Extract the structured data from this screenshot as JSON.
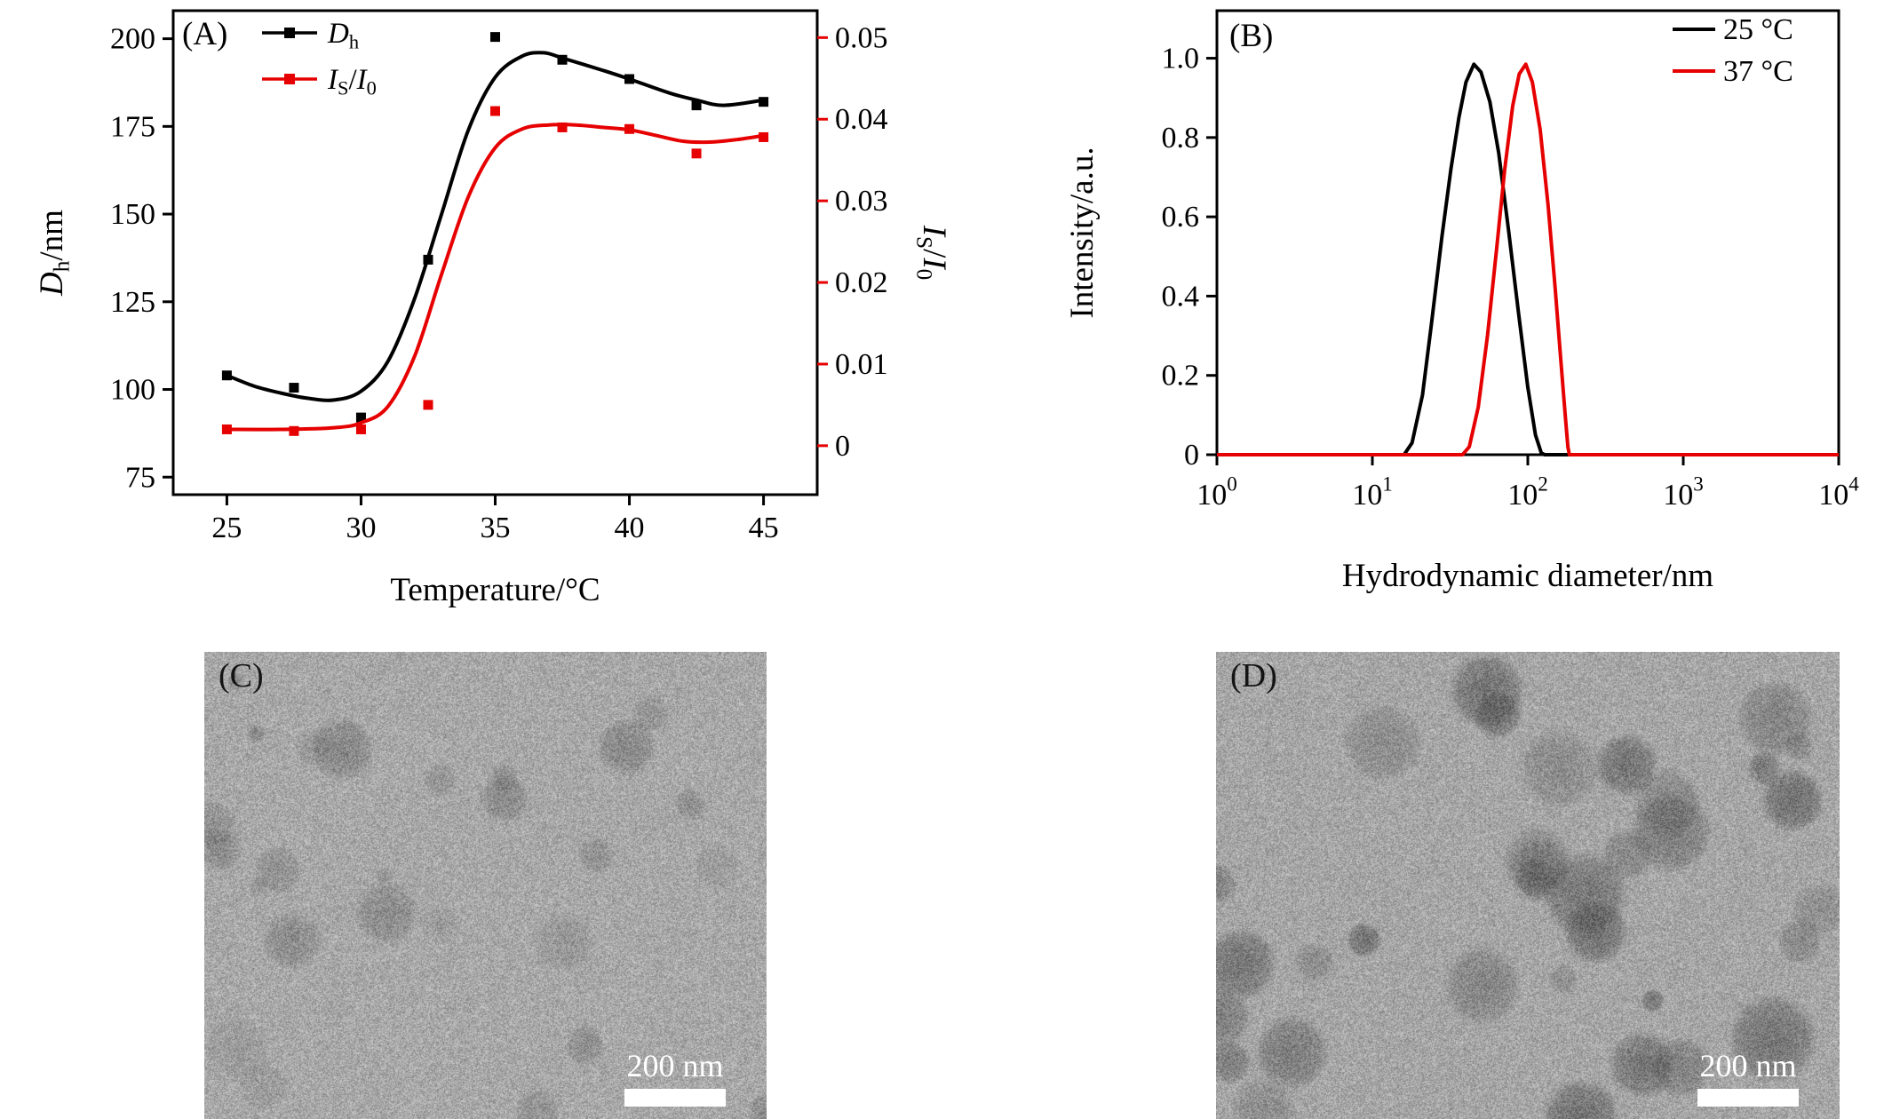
{
  "colors": {
    "black": "#000000",
    "red": "#e60000",
    "background": "#ffffff",
    "scalebar": "#ffffff"
  },
  "panels": {
    "C": {
      "label": "(C)",
      "scalebar": "200 nm",
      "tem": {
        "seed": 7,
        "base": "#b9b9b9",
        "blobs": 26,
        "rmin": 10,
        "rmax": 40,
        "amin": 0.1,
        "amax": 0.3,
        "micro": 340,
        "grain": 0.28
      }
    },
    "D": {
      "label": "(D)",
      "scalebar": "200 nm",
      "tem": {
        "seed": 13,
        "base": "#b6b6b6",
        "blobs": 34,
        "rmin": 12,
        "rmax": 52,
        "amin": 0.2,
        "amax": 0.48,
        "micro": 340,
        "grain": 0.28
      }
    }
  },
  "chart_data": [
    {
      "type": "line",
      "panel_label": "(A)",
      "xlabel": "Temperature/°C",
      "xlim": [
        23,
        47
      ],
      "x_ticks": [
        "25",
        "30",
        "35",
        "40",
        "45"
      ],
      "axes": [
        {
          "side": "left",
          "label": "Dh/nm",
          "label_parts": [
            {
              "t": "D",
              "i": true
            },
            {
              "t": "h",
              "sub": true
            },
            {
              "t": "/nm"
            }
          ],
          "ylim": [
            70,
            208
          ],
          "ticks": [
            "75",
            "100",
            "125",
            "150",
            "175",
            "200"
          ]
        },
        {
          "side": "right",
          "label": "IS/I0",
          "label_parts": [
            {
              "t": "I",
              "i": true
            },
            {
              "t": "S",
              "sub": true
            },
            {
              "t": "/"
            },
            {
              "t": "I",
              "i": true
            },
            {
              "t": "0",
              "sub": true
            }
          ],
          "ylim": [
            -0.006,
            0.0533
          ],
          "ticks": [
            "0",
            "0.01",
            "0.02",
            "0.03",
            "0.04",
            "0.05"
          ]
        }
      ],
      "series": [
        {
          "id": "dh",
          "label": "Dh",
          "axis": "left",
          "color": "black",
          "marker": "square",
          "label_parts": [
            {
              "t": "D",
              "i": true
            },
            {
              "t": "h",
              "sub": true
            }
          ],
          "points": [
            [
              25,
              104
            ],
            [
              27.5,
              100.5
            ],
            [
              30,
              92
            ],
            [
              32.5,
              137
            ],
            [
              35,
              200.5
            ],
            [
              37.5,
              194
            ],
            [
              40,
              188.5
            ],
            [
              42.5,
              181
            ],
            [
              45,
              182
            ]
          ],
          "curve": [
            [
              25,
              104
            ],
            [
              26,
              101
            ],
            [
              27,
              99
            ],
            [
              28,
              97.5
            ],
            [
              29,
              97
            ],
            [
              30,
              99.5
            ],
            [
              31,
              108
            ],
            [
              32,
              126
            ],
            [
              33,
              150
            ],
            [
              34,
              174
            ],
            [
              35,
              189
            ],
            [
              36,
              195
            ],
            [
              36.8,
              196
            ],
            [
              37.5,
              194.5
            ],
            [
              39,
              191
            ],
            [
              40,
              188.5
            ],
            [
              41.5,
              184.5
            ],
            [
              42.5,
              182.5
            ],
            [
              43.5,
              181
            ],
            [
              45,
              182.5
            ]
          ]
        },
        {
          "id": "isi0",
          "label": "IS/I0",
          "axis": "right",
          "color": "red",
          "marker": "square",
          "label_parts": [
            {
              "t": "I",
              "i": true
            },
            {
              "t": "S",
              "sub": true
            },
            {
              "t": "/"
            },
            {
              "t": "I",
              "i": true
            },
            {
              "t": "0",
              "sub": true
            }
          ],
          "points": [
            [
              25,
              0.002
            ],
            [
              27.5,
              0.0018
            ],
            [
              30,
              0.002
            ],
            [
              32.5,
              0.005
            ],
            [
              35,
              0.041
            ],
            [
              37.5,
              0.039
            ],
            [
              40,
              0.0388
            ],
            [
              42.5,
              0.0358
            ],
            [
              45,
              0.0378
            ]
          ],
          "curve": [
            [
              25,
              0.002
            ],
            [
              27,
              0.002
            ],
            [
              29,
              0.0022
            ],
            [
              30,
              0.0028
            ],
            [
              31,
              0.0048
            ],
            [
              32,
              0.011
            ],
            [
              33,
              0.021
            ],
            [
              34,
              0.0305
            ],
            [
              35,
              0.0365
            ],
            [
              36,
              0.0388
            ],
            [
              37,
              0.0393
            ],
            [
              38,
              0.0393
            ],
            [
              39,
              0.039
            ],
            [
              40,
              0.0387
            ],
            [
              41,
              0.038
            ],
            [
              42,
              0.0373
            ],
            [
              43,
              0.0372
            ],
            [
              44,
              0.0375
            ],
            [
              45,
              0.038
            ]
          ]
        }
      ]
    },
    {
      "type": "line",
      "panel_label": "(B)",
      "xscale": "log",
      "xlabel": "Hydrodynamic diameter/nm",
      "ylabel": "Intensity/a.u.",
      "xlim": [
        1,
        10000
      ],
      "x_tick_exponents": [
        0,
        1,
        2,
        3,
        4
      ],
      "ylim": [
        0,
        1.12
      ],
      "y_ticks": [
        "0",
        "0.2",
        "0.4",
        "0.6",
        "0.8",
        "1.0"
      ],
      "legend_position": "top-right",
      "series": [
        {
          "id": "t25",
          "name": "25 °C",
          "color": "black",
          "points": [
            [
              1,
              0
            ],
            [
              16,
              0
            ],
            [
              18,
              0.03
            ],
            [
              21,
              0.15
            ],
            [
              24,
              0.33
            ],
            [
              28,
              0.55
            ],
            [
              32,
              0.72
            ],
            [
              36,
              0.85
            ],
            [
              40,
              0.94
            ],
            [
              45,
              0.985
            ],
            [
              50,
              0.965
            ],
            [
              57,
              0.89
            ],
            [
              65,
              0.76
            ],
            [
              75,
              0.57
            ],
            [
              87,
              0.36
            ],
            [
              100,
              0.17
            ],
            [
              112,
              0.05
            ],
            [
              122,
              0.005
            ],
            [
              128,
              0
            ],
            [
              10000,
              0
            ]
          ]
        },
        {
          "id": "t37",
          "name": "37 °C",
          "color": "red",
          "points": [
            [
              1,
              0
            ],
            [
              38,
              0
            ],
            [
              42,
              0.02
            ],
            [
              48,
              0.12
            ],
            [
              55,
              0.3
            ],
            [
              63,
              0.52
            ],
            [
              71,
              0.72
            ],
            [
              80,
              0.88
            ],
            [
              88,
              0.96
            ],
            [
              97,
              0.985
            ],
            [
              107,
              0.94
            ],
            [
              120,
              0.82
            ],
            [
              135,
              0.63
            ],
            [
              150,
              0.42
            ],
            [
              163,
              0.24
            ],
            [
              174,
              0.1
            ],
            [
              181,
              0.02
            ],
            [
              185,
              0
            ],
            [
              10000,
              0
            ]
          ]
        }
      ]
    }
  ]
}
